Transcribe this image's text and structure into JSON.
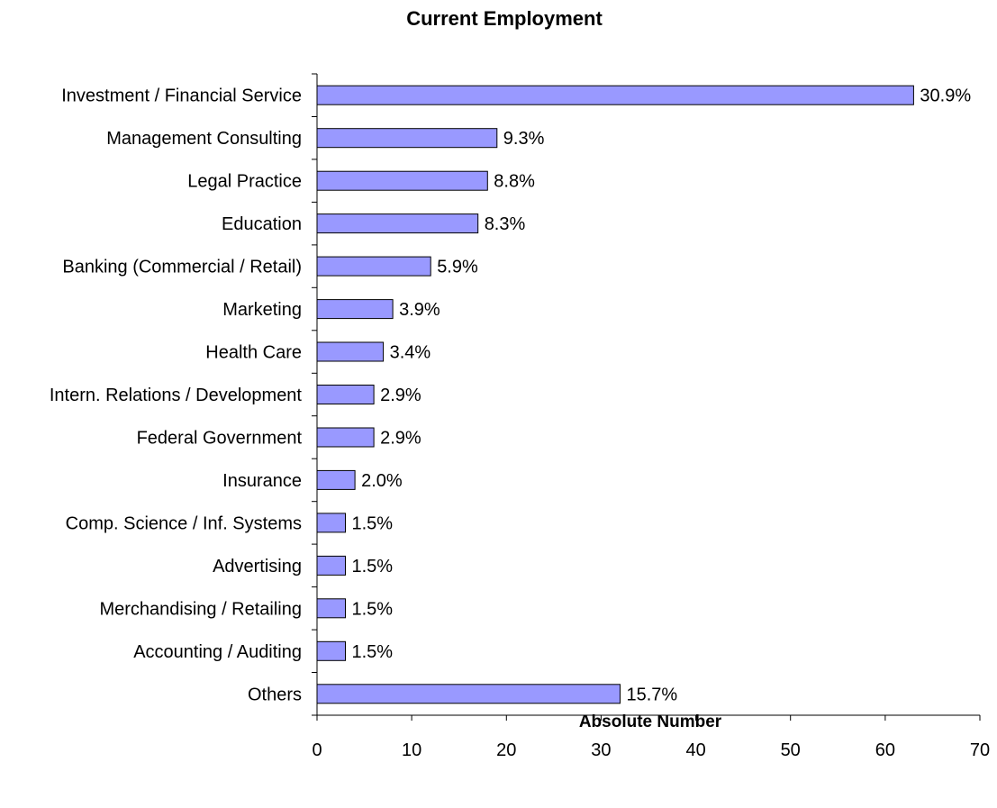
{
  "chart_data": {
    "type": "bar",
    "orientation": "horizontal",
    "title": "Current Employment",
    "xlabel": "Absolute Number",
    "ylabel": "",
    "xlim": [
      0,
      70
    ],
    "xticks": [
      0,
      10,
      20,
      30,
      40,
      50,
      60,
      70
    ],
    "grid": false,
    "legend": "none",
    "bar_color": "#9999ff",
    "categories": [
      "Investment / Financial Service",
      "Management Consulting",
      "Legal Practice",
      "Education",
      "Banking (Commercial / Retail)",
      "Marketing",
      "Health Care",
      "Intern. Relations / Development",
      "Federal Government",
      "Insurance",
      "Comp. Science / Inf. Systems",
      "Advertising",
      "Merchandising / Retailing",
      "Accounting / Auditing",
      "Others"
    ],
    "values": [
      63,
      19,
      18,
      17,
      12,
      8,
      7,
      6,
      6,
      4,
      3,
      3,
      3,
      3,
      32
    ],
    "data_labels": [
      "30.9%",
      "9.3%",
      "8.8%",
      "8.3%",
      "5.9%",
      "3.9%",
      "3.4%",
      "2.9%",
      "2.9%",
      "2.0%",
      "1.5%",
      "1.5%",
      "1.5%",
      "1.5%",
      "15.7%"
    ]
  }
}
